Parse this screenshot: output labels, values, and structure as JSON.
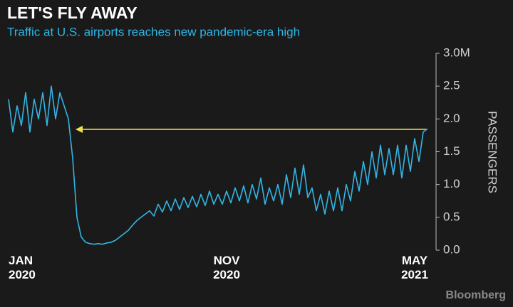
{
  "chart_data": {
    "type": "line",
    "title": "LET'S FLY AWAY",
    "subtitle": "Traffic at U.S. airports reaches new pandemic-era high",
    "y_axis_label": "PASSENGERS",
    "source": "Bloomberg",
    "categories": [
      "JAN 2020",
      null,
      null,
      null,
      null,
      null,
      null,
      null,
      null,
      null,
      null,
      null,
      null,
      null,
      null,
      null,
      null,
      null,
      null,
      null,
      null,
      null,
      null,
      null,
      null,
      null,
      null,
      null,
      null,
      null,
      null,
      null,
      null,
      null,
      null,
      null,
      null,
      null,
      null,
      null,
      null,
      null,
      null,
      null,
      null,
      null,
      null,
      null,
      null,
      null,
      null,
      "NOV 2020",
      null,
      null,
      null,
      null,
      null,
      null,
      null,
      null,
      null,
      null,
      null,
      null,
      null,
      null,
      null,
      null,
      null,
      null,
      null,
      null,
      null,
      null,
      null,
      null,
      null,
      null,
      null,
      null,
      null,
      null,
      null,
      null,
      null,
      null,
      null,
      null,
      null,
      null,
      null,
      null,
      null,
      null,
      null,
      "MAY 2021",
      null,
      null,
      null
    ],
    "series": [
      {
        "name": "Passengers",
        "color": "#33b5e5",
        "values": [
          2.3,
          1.8,
          2.2,
          1.9,
          2.4,
          1.8,
          2.3,
          2.0,
          2.4,
          1.9,
          2.5,
          2.0,
          2.4,
          2.2,
          2.0,
          1.4,
          0.5,
          0.2,
          0.12,
          0.1,
          0.09,
          0.1,
          0.09,
          0.11,
          0.12,
          0.15,
          0.2,
          0.25,
          0.3,
          0.38,
          0.45,
          0.5,
          0.55,
          0.6,
          0.52,
          0.7,
          0.58,
          0.75,
          0.6,
          0.78,
          0.62,
          0.8,
          0.65,
          0.82,
          0.66,
          0.85,
          0.68,
          0.9,
          0.7,
          0.85,
          0.7,
          0.9,
          0.72,
          0.95,
          0.75,
          0.98,
          0.72,
          1.0,
          0.78,
          1.1,
          0.7,
          0.95,
          0.75,
          1.0,
          0.7,
          1.15,
          0.8,
          1.25,
          0.85,
          1.3,
          0.8,
          0.95,
          0.6,
          0.85,
          0.55,
          0.9,
          0.6,
          0.95,
          0.6,
          1.0,
          0.75,
          1.2,
          0.9,
          1.35,
          1.0,
          1.5,
          1.1,
          1.6,
          1.15,
          1.55,
          1.15,
          1.6,
          1.1,
          1.6,
          1.2,
          1.7,
          1.35,
          1.8,
          1.85
        ]
      }
    ],
    "ylim": [
      0,
      3
    ],
    "yticks": [
      {
        "value": 0,
        "label": "0.0"
      },
      0.5,
      {
        "value": 1,
        "label": "1.0"
      },
      1.5,
      {
        "value": 2,
        "label": "2.0"
      },
      2.5,
      {
        "value": 3,
        "label": "3.0M"
      }
    ],
    "annotation_color": "#f2e34c"
  }
}
